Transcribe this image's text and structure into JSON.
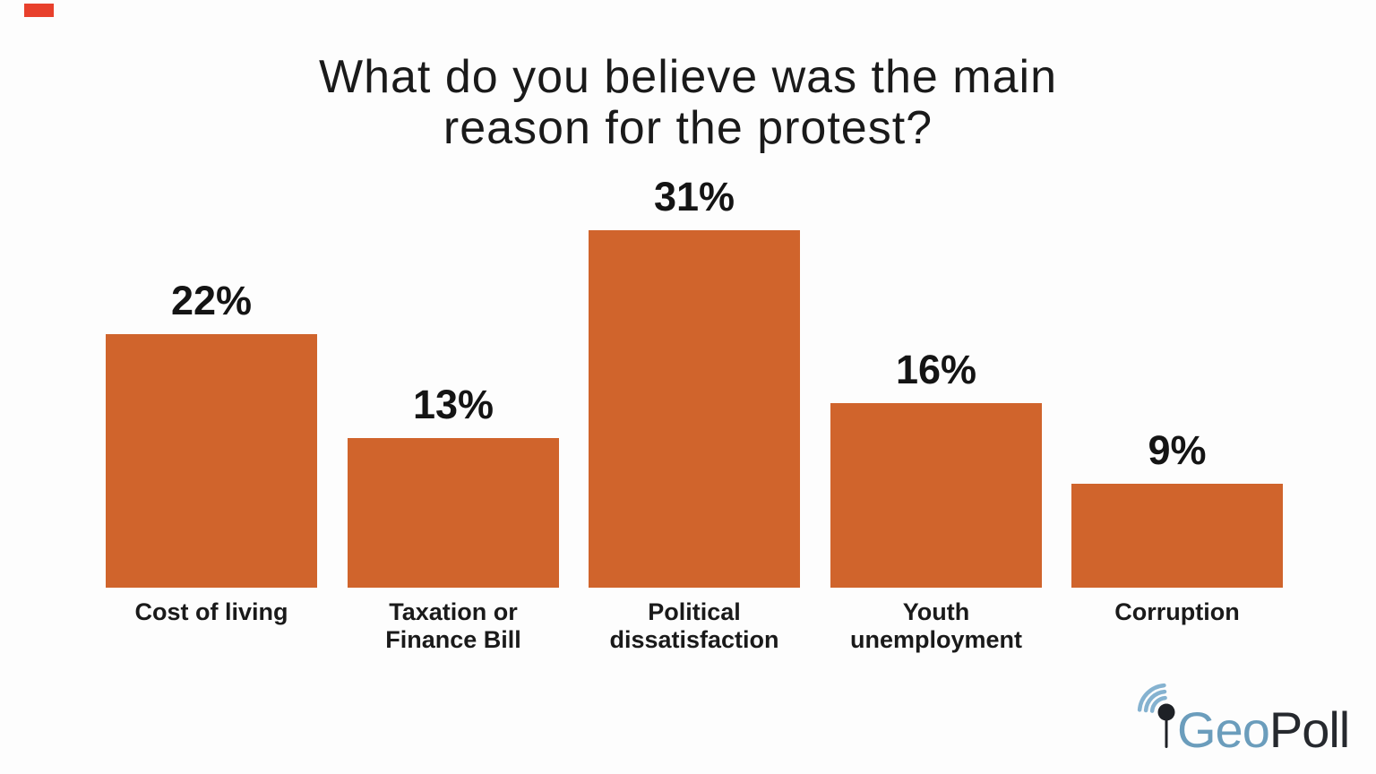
{
  "accent_mark": {
    "color": "#E8402C"
  },
  "title": {
    "line1": "What do you believe was the main",
    "line2": "reason for the protest?"
  },
  "chart_data": {
    "type": "bar",
    "title": "What do you believe was the main reason for the protest?",
    "categories": [
      "Cost of living",
      "Taxation or Finance Bill",
      "Political dissatisfaction",
      "Youth unemployment",
      "Corruption"
    ],
    "values": [
      22,
      13,
      31,
      16,
      9
    ],
    "unit": "%",
    "data_labels": [
      "22%",
      "13%",
      "31%",
      "16%",
      "9%"
    ],
    "category_lines": [
      [
        "Cost of living"
      ],
      [
        "Taxation or",
        "Finance Bill"
      ],
      [
        "Political",
        "dissatisfaction"
      ],
      [
        "Youth",
        "unemployment"
      ],
      [
        "Corruption"
      ]
    ],
    "bar_color": "#D0642C",
    "label_color": "#141414",
    "xlabel": "",
    "ylabel": "",
    "ylim": [
      0,
      35
    ],
    "grid": false,
    "legend": "none",
    "axes_hidden": true
  },
  "logo": {
    "brand_part1": "Geo",
    "brand_part2": "Poll",
    "part1_color": "#6B9DBC",
    "part2_color": "#26292E",
    "pin_color": "#1E2126",
    "arc_color": "#85B2D0"
  }
}
